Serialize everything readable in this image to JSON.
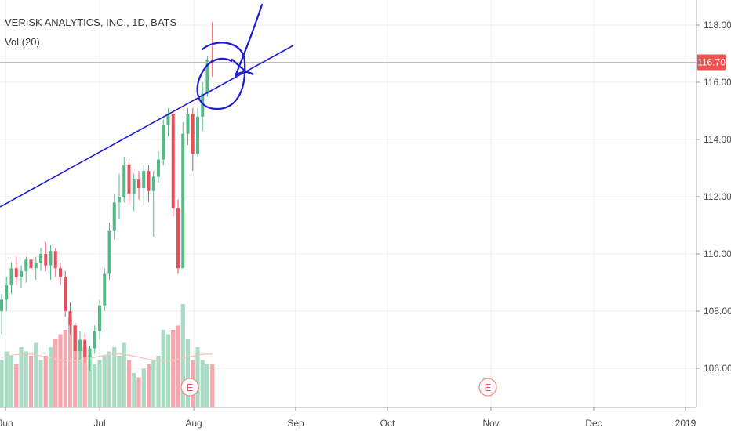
{
  "header": {
    "title": "VERISK ANALYTICS, INC., 1D, BATS",
    "volume_label": "Vol (20)"
  },
  "colors": {
    "up": "#53b987",
    "down": "#eb4d5c",
    "volume_up": "#a9dcc3",
    "volume_down": "#f5a6ae",
    "volume_ma": "#f3c7b6",
    "trendline": "#1c1cd8",
    "price_line": "#f4a7a4",
    "price_tag": "#ef5350",
    "grid": "#ececec",
    "axis_text": "#4a4a4a"
  },
  "chart_data": {
    "type": "candlestick",
    "symbol": "VERISK ANALYTICS, INC.",
    "interval": "1D",
    "exchange": "BATS",
    "y_axis": {
      "ticks": [
        "106.00",
        "108.00",
        "110.00",
        "112.00",
        "114.00",
        "116.00",
        "118.00"
      ],
      "range": [
        104.7,
        118.9
      ],
      "side": "right"
    },
    "x_axis": {
      "ticks": [
        "Jun",
        "Jul",
        "Aug",
        "Sep",
        "Oct",
        "Nov",
        "Dec",
        "2019"
      ]
    },
    "last_price": "116.70",
    "candles": [
      [
        108.0,
        108.6,
        107.2,
        108.4
      ],
      [
        108.4,
        109.2,
        108.0,
        108.9
      ],
      [
        108.9,
        109.7,
        108.6,
        109.5
      ],
      [
        109.5,
        109.9,
        108.9,
        109.2
      ],
      [
        109.2,
        109.6,
        108.8,
        109.4
      ],
      [
        109.4,
        109.9,
        109.0,
        109.8
      ],
      [
        109.8,
        110.1,
        109.3,
        109.5
      ],
      [
        109.5,
        109.9,
        109.1,
        109.7
      ],
      [
        109.7,
        110.2,
        109.4,
        110.0
      ],
      [
        110.0,
        110.4,
        109.4,
        109.6
      ],
      [
        109.6,
        110.3,
        109.1,
        110.1
      ],
      [
        110.1,
        110.2,
        109.2,
        109.5
      ],
      [
        109.5,
        109.7,
        108.9,
        109.2
      ],
      [
        109.2,
        109.4,
        107.8,
        108.0
      ],
      [
        108.0,
        108.3,
        107.2,
        107.5
      ],
      [
        107.5,
        107.6,
        106.3,
        106.6
      ],
      [
        106.6,
        107.3,
        106.3,
        107.0
      ],
      [
        107.0,
        107.2,
        106.2,
        106.4
      ],
      [
        106.4,
        106.8,
        105.9,
        106.7
      ],
      [
        106.7,
        107.5,
        106.5,
        107.3
      ],
      [
        107.3,
        108.4,
        107.0,
        108.2
      ],
      [
        108.2,
        109.5,
        108.0,
        109.3
      ],
      [
        109.3,
        111.1,
        109.1,
        110.8
      ],
      [
        110.8,
        112.1,
        110.5,
        111.8
      ],
      [
        111.8,
        112.8,
        111.2,
        112.0
      ],
      [
        112.0,
        113.4,
        111.8,
        113.1
      ],
      [
        113.1,
        113.2,
        111.8,
        112.1
      ],
      [
        112.1,
        112.8,
        111.5,
        112.6
      ],
      [
        112.6,
        112.9,
        111.9,
        112.3
      ],
      [
        112.3,
        113.1,
        111.7,
        112.9
      ],
      [
        112.9,
        113.1,
        111.8,
        112.2
      ],
      [
        112.2,
        112.9,
        110.6,
        112.7
      ],
      [
        112.7,
        113.6,
        112.5,
        113.3
      ],
      [
        113.3,
        114.7,
        113.1,
        114.5
      ],
      [
        114.5,
        115.1,
        114.1,
        114.9
      ],
      [
        114.9,
        115.0,
        111.3,
        111.6
      ],
      [
        111.6,
        111.9,
        109.3,
        109.5
      ],
      [
        109.5,
        114.6,
        109.5,
        114.2
      ],
      [
        114.2,
        115.1,
        113.8,
        114.9
      ],
      [
        114.9,
        115.1,
        112.9,
        113.5
      ],
      [
        113.5,
        115.1,
        113.4,
        114.8
      ],
      [
        114.8,
        116.0,
        114.3,
        115.6
      ],
      [
        115.6,
        116.9,
        115.5,
        116.8
      ],
      [
        116.8,
        118.1,
        116.2,
        116.7
      ]
    ],
    "volume": {
      "values": [
        0.55,
        0.65,
        0.6,
        0.5,
        0.7,
        0.65,
        0.6,
        0.75,
        0.55,
        0.6,
        0.7,
        0.8,
        0.85,
        0.9,
        1.05,
        0.95,
        0.75,
        0.7,
        0.6,
        0.5,
        0.55,
        0.6,
        0.65,
        0.7,
        0.6,
        0.75,
        0.55,
        0.4,
        0.35,
        0.45,
        0.5,
        0.55,
        0.6,
        0.9,
        0.85,
        0.9,
        0.95,
        1.2,
        0.8,
        0.55,
        0.7,
        0.55,
        0.5,
        0.5
      ],
      "ma_level": 0.58
    },
    "events": [
      {
        "label": "E",
        "period": "Aug"
      },
      {
        "label": "E",
        "period": "Nov"
      }
    ],
    "drawings": [
      "trendline",
      "circle annotation",
      "check mark annotation"
    ]
  }
}
